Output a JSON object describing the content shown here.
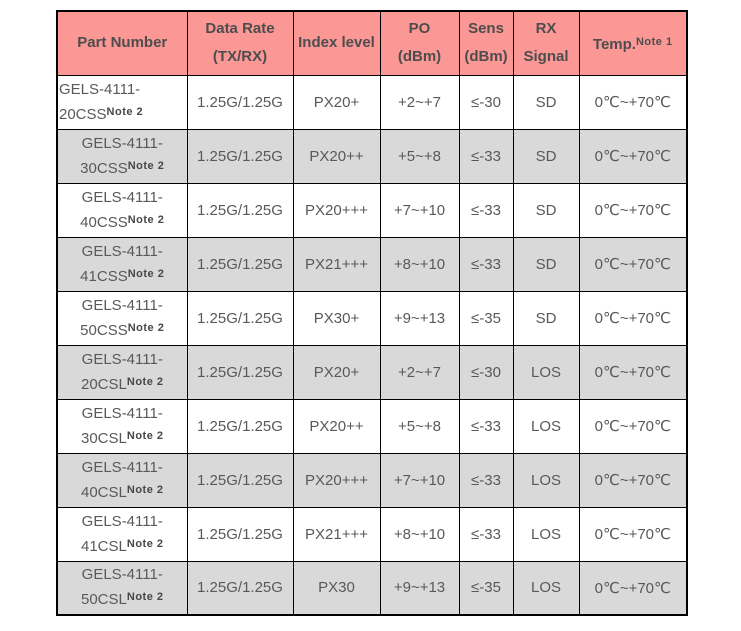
{
  "colors": {
    "header_bg": "#fb9795",
    "row_shaded_bg": "#d9d9d9",
    "row_plain_bg": "#ffffff",
    "border": "#000000",
    "header_text": "#4d4d4d",
    "body_text": "#595959"
  },
  "table": {
    "columns": [
      {
        "id": "part_number",
        "lines": [
          "Part Number"
        ],
        "sup": ""
      },
      {
        "id": "data_rate",
        "lines": [
          "Data Rate",
          "(TX/RX)"
        ],
        "sup": ""
      },
      {
        "id": "index_level",
        "lines": [
          "Index level"
        ],
        "sup": ""
      },
      {
        "id": "po",
        "lines": [
          "PO",
          "(dBm)"
        ],
        "sup": ""
      },
      {
        "id": "sens",
        "lines": [
          "Sens",
          "(dBm)"
        ],
        "sup": ""
      },
      {
        "id": "rx_signal",
        "lines": [
          "RX",
          "Signal"
        ],
        "sup": ""
      },
      {
        "id": "temp",
        "lines": [
          "Temp."
        ],
        "sup": "Note 1"
      }
    ],
    "rows": [
      {
        "part_lines": [
          "GELS-4111-",
          "20CSS"
        ],
        "part_sup": "Note 2",
        "part_align": "left",
        "shaded": false,
        "data_rate": "1.25G/1.25G",
        "index_level": "PX20+",
        "po": "+2~+7",
        "sens": "≤-30",
        "rx_signal": "SD",
        "temp": "0℃~+70℃"
      },
      {
        "part_lines": [
          "GELS-4111-",
          "30CSS"
        ],
        "part_sup": "Note 2",
        "part_align": "center",
        "shaded": true,
        "data_rate": "1.25G/1.25G",
        "index_level": "PX20++",
        "po": "+5~+8",
        "sens": "≤-33",
        "rx_signal": "SD",
        "temp": "0℃~+70℃"
      },
      {
        "part_lines": [
          "GELS-4111-",
          "40CSS"
        ],
        "part_sup": "Note 2",
        "part_align": "center",
        "shaded": false,
        "data_rate": "1.25G/1.25G",
        "index_level": "PX20+++",
        "po": "+7~+10",
        "sens": "≤-33",
        "rx_signal": "SD",
        "temp": "0℃~+70℃"
      },
      {
        "part_lines": [
          "GELS-4111-",
          "41CSS"
        ],
        "part_sup": "Note 2",
        "part_align": "center",
        "shaded": true,
        "data_rate": "1.25G/1.25G",
        "index_level": "PX21+++",
        "po": "+8~+10",
        "sens": "≤-33",
        "rx_signal": "SD",
        "temp": "0℃~+70℃"
      },
      {
        "part_lines": [
          "GELS-4111-",
          "50CSS"
        ],
        "part_sup": "Note 2",
        "part_align": "center",
        "shaded": false,
        "data_rate": "1.25G/1.25G",
        "index_level": "PX30+",
        "po": "+9~+13",
        "sens": "≤-35",
        "rx_signal": "SD",
        "temp": "0℃~+70℃"
      },
      {
        "part_lines": [
          "GELS-4111-",
          "20CSL"
        ],
        "part_sup": "Note 2",
        "part_align": "center",
        "shaded": true,
        "data_rate": "1.25G/1.25G",
        "index_level": "PX20+",
        "po": "+2~+7",
        "sens": "≤-30",
        "rx_signal": "LOS",
        "temp": "0℃~+70℃"
      },
      {
        "part_lines": [
          "GELS-4111-",
          "30CSL"
        ],
        "part_sup": "Note 2",
        "part_align": "center",
        "shaded": false,
        "data_rate": "1.25G/1.25G",
        "index_level": "PX20++",
        "po": "+5~+8",
        "sens": "≤-33",
        "rx_signal": "LOS",
        "temp": "0℃~+70℃"
      },
      {
        "part_lines": [
          "GELS-4111-",
          "40CSL"
        ],
        "part_sup": "Note 2",
        "part_align": "center",
        "shaded": true,
        "data_rate": "1.25G/1.25G",
        "index_level": "PX20+++",
        "po": "+7~+10",
        "sens": "≤-33",
        "rx_signal": "LOS",
        "temp": "0℃~+70℃"
      },
      {
        "part_lines": [
          "GELS-4111-",
          "41CSL"
        ],
        "part_sup": "Note 2",
        "part_align": "center",
        "shaded": false,
        "data_rate": "1.25G/1.25G",
        "index_level": "PX21+++",
        "po": "+8~+10",
        "sens": "≤-33",
        "rx_signal": "LOS",
        "temp": "0℃~+70℃"
      },
      {
        "part_lines": [
          "GELS-4111-",
          "50CSL"
        ],
        "part_sup": "Note 2",
        "part_align": "center",
        "shaded": true,
        "data_rate": "1.25G/1.25G",
        "index_level": "PX30",
        "po": "+9~+13",
        "sens": "≤-35",
        "rx_signal": "LOS",
        "temp": "0℃~+70℃"
      }
    ]
  }
}
